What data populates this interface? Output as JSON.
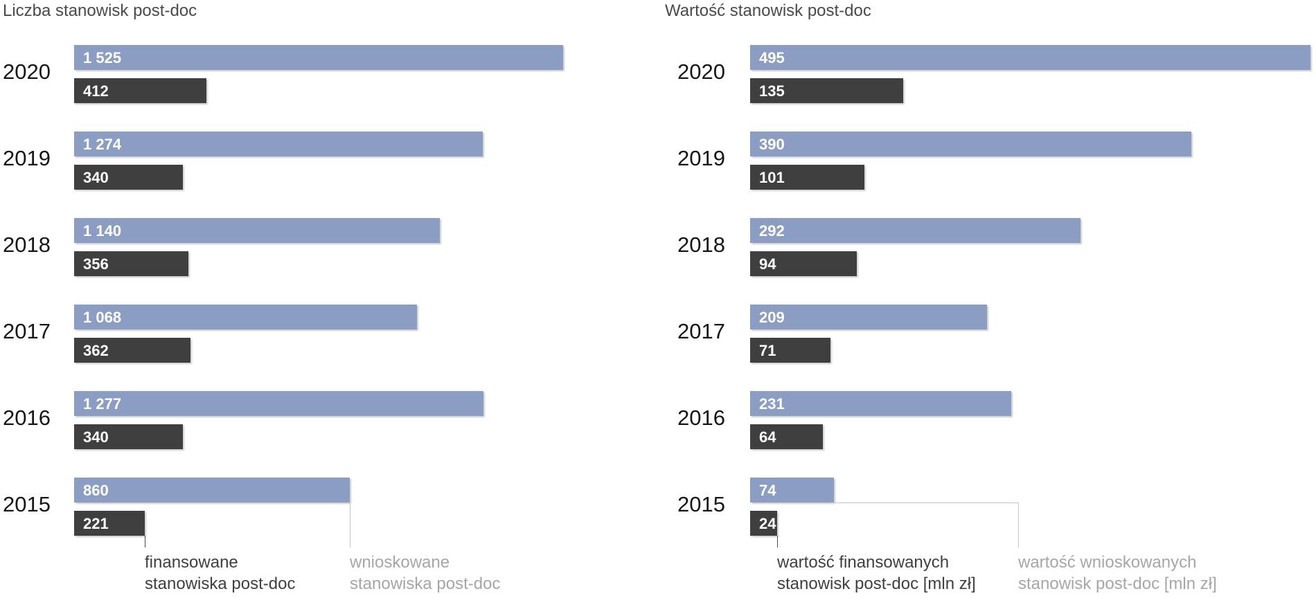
{
  "chart_data": [
    {
      "type": "bar",
      "orientation": "horizontal",
      "title": "Liczba stanowisk post-doc",
      "categories": [
        "2020",
        "2019",
        "2018",
        "2017",
        "2016",
        "2015"
      ],
      "series": [
        {
          "name": "wnioskowane stanowiska post-doc",
          "color": "#8C9DC4",
          "values": [
            1525,
            1274,
            1140,
            1068,
            1277,
            860
          ],
          "labels": [
            "1 525",
            "1 274",
            "1 140",
            "1 068",
            "1 277",
            "860"
          ]
        },
        {
          "name": "finansowane stanowiska post-doc",
          "color": "#3F3F3F",
          "values": [
            412,
            340,
            356,
            362,
            340,
            221
          ],
          "labels": [
            "412",
            "340",
            "356",
            "362",
            "340",
            "221"
          ]
        }
      ],
      "xlim": [
        0,
        1820
      ],
      "grid": false,
      "legend_position": "bottom",
      "legend": [
        {
          "lines": [
            "finansowane",
            "stanowiska post-doc"
          ],
          "color": "#3F3F3F"
        },
        {
          "lines": [
            "wnioskowane",
            "stanowiska post-doc"
          ],
          "color": "#A6A6A6"
        }
      ]
    },
    {
      "type": "bar",
      "orientation": "horizontal",
      "title": "Wartość stanowisk post-doc",
      "categories": [
        "2020",
        "2019",
        "2018",
        "2017",
        "2016",
        "2015"
      ],
      "series": [
        {
          "name": "wartość wnioskowanych stanowisk post-doc [mln zł]",
          "color": "#8C9DC4",
          "values": [
            495,
            390,
            292,
            209,
            231,
            74
          ],
          "labels": [
            "495",
            "390",
            "292",
            "209",
            "231",
            "74"
          ]
        },
        {
          "name": "wartość finansowanych stanowisk post-doc [mln zł]",
          "color": "#3F3F3F",
          "values": [
            135,
            101,
            94,
            71,
            64,
            24
          ],
          "labels": [
            "135",
            "101",
            "94",
            "71",
            "64",
            "24"
          ]
        }
      ],
      "xlim": [
        0,
        500
      ],
      "grid": false,
      "legend_position": "bottom",
      "legend": [
        {
          "lines": [
            "wartość finansowanych",
            "stanowisk post-doc [mln zł]"
          ],
          "color": "#3F3F3F"
        },
        {
          "lines": [
            "wartość wnioskowanych",
            "stanowisk post-doc [mln zł]"
          ],
          "color": "#A6A6A6"
        }
      ]
    }
  ],
  "colors": {
    "requested_bar": "#8C9DC4",
    "funded_bar": "#3F3F3F",
    "value_label": "#FFFFFF",
    "title_text": "#4A4A4A",
    "year_text": "#161616",
    "legend_muted": "#A6A6A6",
    "leader_light": "#C4C4C4",
    "leader_dark": "#4D4D4D",
    "background": "#FFFFFF"
  }
}
